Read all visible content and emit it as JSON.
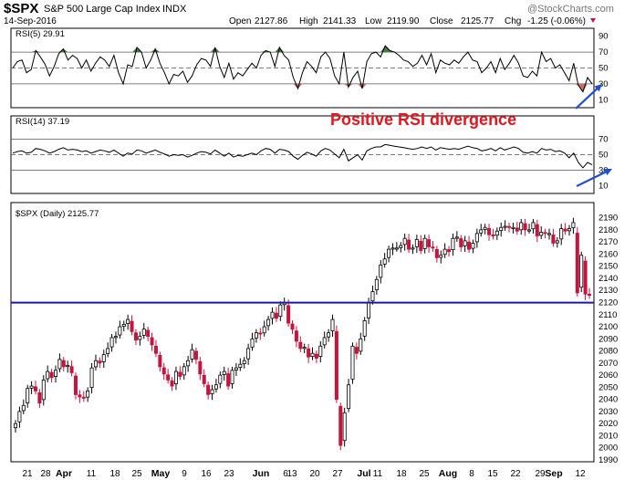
{
  "header": {
    "symbol": "$SPX",
    "name": "S&P 500 Large Cap Index",
    "exchange": "INDX",
    "date": "14-Sep-2016",
    "watermark": "@StockCharts.com",
    "open_label": "Open",
    "open": "2127.86",
    "high_label": "High",
    "high": "2141.33",
    "low_label": "Low",
    "low": "2119.90",
    "close_label": "Close",
    "close": "2125.77",
    "chg_label": "Chg",
    "chg": "-1.25 (-0.06%)"
  },
  "colors": {
    "up": "#000000",
    "down": "#c8143c",
    "support_line": "#1a1aa8",
    "arrow": "#1f4fcf",
    "annotation": "#e8141e",
    "rsi_fill_high": "#4a7a4a",
    "rsi_fill_low": "#c87070"
  },
  "chart_data": [
    {
      "type": "line",
      "title": "RSI(5) 29.91",
      "ylim": [
        0,
        100
      ],
      "yticks": [
        90,
        70,
        50,
        30,
        10
      ],
      "reference_lines": [
        70,
        50,
        30
      ],
      "series": [
        {
          "name": "RSI(5)",
          "values": [
            50,
            58,
            60,
            44,
            48,
            72,
            64,
            55,
            40,
            52,
            68,
            74,
            60,
            66,
            62,
            50,
            60,
            46,
            56,
            64,
            60,
            52,
            66,
            44,
            30,
            54,
            52,
            76,
            70,
            50,
            60,
            74,
            56,
            44,
            30,
            42,
            40,
            46,
            32,
            40,
            54,
            62,
            60,
            52,
            76,
            52,
            38,
            56,
            36,
            44,
            40,
            48,
            56,
            50,
            66,
            72,
            70,
            52,
            76,
            66,
            60,
            38,
            24,
            44,
            58,
            52,
            44,
            64,
            70,
            62,
            40,
            30,
            70,
            26,
            38,
            46,
            24,
            58,
            68,
            70,
            64,
            78,
            72,
            70,
            66,
            60,
            58,
            52,
            56,
            66,
            54,
            68,
            44,
            60,
            56,
            54,
            60,
            56,
            64,
            70,
            60,
            58,
            44,
            50,
            58,
            44,
            62,
            48,
            56,
            66,
            56,
            40,
            38,
            46,
            40,
            70,
            58,
            62,
            50,
            54,
            44,
            34,
            56,
            28,
            20,
            38,
            30
          ]
        }
      ],
      "annotations": [
        "Positive RSI divergence"
      ]
    },
    {
      "type": "line",
      "title": "RSI(14) 37.19",
      "ylim": [
        0,
        100
      ],
      "yticks": [
        70,
        50,
        30,
        10
      ],
      "reference_lines": [
        70,
        50,
        30
      ],
      "series": [
        {
          "name": "RSI(14)",
          "values": [
            52,
            54,
            55,
            52,
            53,
            58,
            57,
            55,
            52,
            54,
            57,
            59,
            56,
            57,
            56,
            54,
            55,
            52,
            54,
            56,
            55,
            53,
            56,
            52,
            48,
            52,
            51,
            56,
            55,
            52,
            54,
            56,
            53,
            51,
            48,
            50,
            49,
            50,
            47,
            49,
            52,
            54,
            53,
            51,
            56,
            52,
            48,
            52,
            47,
            49,
            48,
            50,
            52,
            50,
            55,
            58,
            57,
            52,
            57,
            56,
            54,
            48,
            44,
            49,
            53,
            51,
            48,
            55,
            58,
            56,
            51,
            46,
            57,
            42,
            46,
            50,
            43,
            55,
            58,
            60,
            60,
            63,
            62,
            61,
            60,
            59,
            58,
            57,
            58,
            60,
            58,
            60,
            56,
            59,
            58,
            57,
            58,
            57,
            59,
            61,
            59,
            58,
            55,
            56,
            58,
            55,
            59,
            56,
            58,
            60,
            58,
            53,
            52,
            54,
            52,
            58,
            56,
            57,
            54,
            55,
            52,
            46,
            52,
            40,
            33,
            40,
            37
          ]
        }
      ]
    },
    {
      "type": "candlestick",
      "title": "$SPX (Daily) 2125.77",
      "ylim": [
        1990,
        2195
      ],
      "yticks": [
        2190,
        2180,
        2170,
        2160,
        2150,
        2140,
        2130,
        2120,
        2110,
        2100,
        2090,
        2080,
        2070,
        2060,
        2050,
        2040,
        2030,
        2020,
        2010,
        2000,
        1990
      ],
      "support_level": 2119.9,
      "x_labels": [
        "21",
        "28",
        "Apr",
        "11",
        "18",
        "25",
        "May",
        "9",
        "16",
        "23",
        "Jun",
        "6",
        "13",
        "20",
        "27",
        "Jul",
        "11",
        "18",
        "25",
        "Aug",
        "8",
        "15",
        "22",
        "29",
        "Sep",
        "12"
      ],
      "month_labels": [
        "Apr",
        "May",
        "Jun",
        "Jul",
        "Aug",
        "Sep"
      ],
      "closes": [
        2020,
        2030,
        2035,
        2049,
        2051,
        2047,
        2037,
        2056,
        2063,
        2058,
        2064,
        2073,
        2067,
        2068,
        2062,
        2044,
        2042,
        2041,
        2047,
        2066,
        2072,
        2070,
        2077,
        2082,
        2091,
        2092,
        2100,
        2102,
        2106,
        2096,
        2089,
        2092,
        2098,
        2092,
        2085,
        2078,
        2067,
        2061,
        2056,
        2051,
        2063,
        2059,
        2067,
        2072,
        2081,
        2073,
        2061,
        2053,
        2044,
        2048,
        2052,
        2060,
        2063,
        2051,
        2064,
        2066,
        2069,
        2072,
        2082,
        2090,
        2095,
        2094,
        2100,
        2106,
        2112,
        2107,
        2118,
        2120,
        2103,
        2098,
        2088,
        2082,
        2083,
        2075,
        2078,
        2074,
        2084,
        2091,
        2095,
        2106,
        2040,
        2002,
        2029,
        2052,
        2084,
        2078,
        2090,
        2105,
        2120,
        2129,
        2139,
        2151,
        2156,
        2164,
        2165,
        2165,
        2167,
        2173,
        2164,
        2165,
        2172,
        2163,
        2173,
        2166,
        2165,
        2157,
        2159,
        2164,
        2162,
        2173,
        2174,
        2166,
        2171,
        2164,
        2169,
        2177,
        2180,
        2182,
        2176,
        2175,
        2179,
        2182,
        2183,
        2182,
        2182,
        2179,
        2186,
        2180,
        2180,
        2186,
        2175,
        2178,
        2177,
        2177,
        2169,
        2171,
        2181,
        2179,
        2181,
        2186,
        2128,
        2159,
        2127,
        2126
      ]
    }
  ]
}
